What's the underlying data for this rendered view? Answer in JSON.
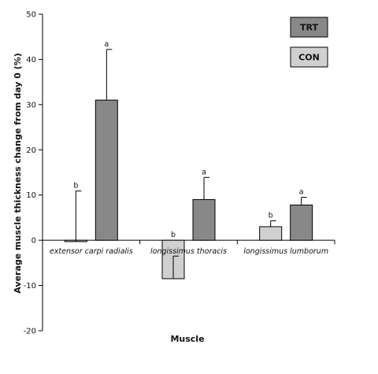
{
  "chart_data": {
    "type": "bar",
    "xlabel": "Muscle",
    "ylabel": "Average muscle thickness change from day 0 (%)",
    "ylim": [
      -20,
      50
    ],
    "yticks": [
      -20,
      -10,
      0,
      10,
      20,
      30,
      40,
      50
    ],
    "grid": false,
    "legend_position": "top-right",
    "categories": [
      "extensor carpi radialis",
      "longissimus thoracis",
      "longissimus lumborum"
    ],
    "series": [
      {
        "name": "CON",
        "color": "#d0d0d0",
        "values": [
          -0.3,
          -8.5,
          3.0
        ],
        "error_upper": [
          10.9,
          -3.5,
          4.3
        ],
        "letters": [
          "b",
          "b",
          "b"
        ]
      },
      {
        "name": "TRT",
        "color": "#888888",
        "values": [
          31.0,
          9.0,
          7.8
        ],
        "error_upper": [
          42.2,
          13.9,
          9.5
        ],
        "letters": [
          "a",
          "a",
          "a"
        ]
      }
    ]
  }
}
